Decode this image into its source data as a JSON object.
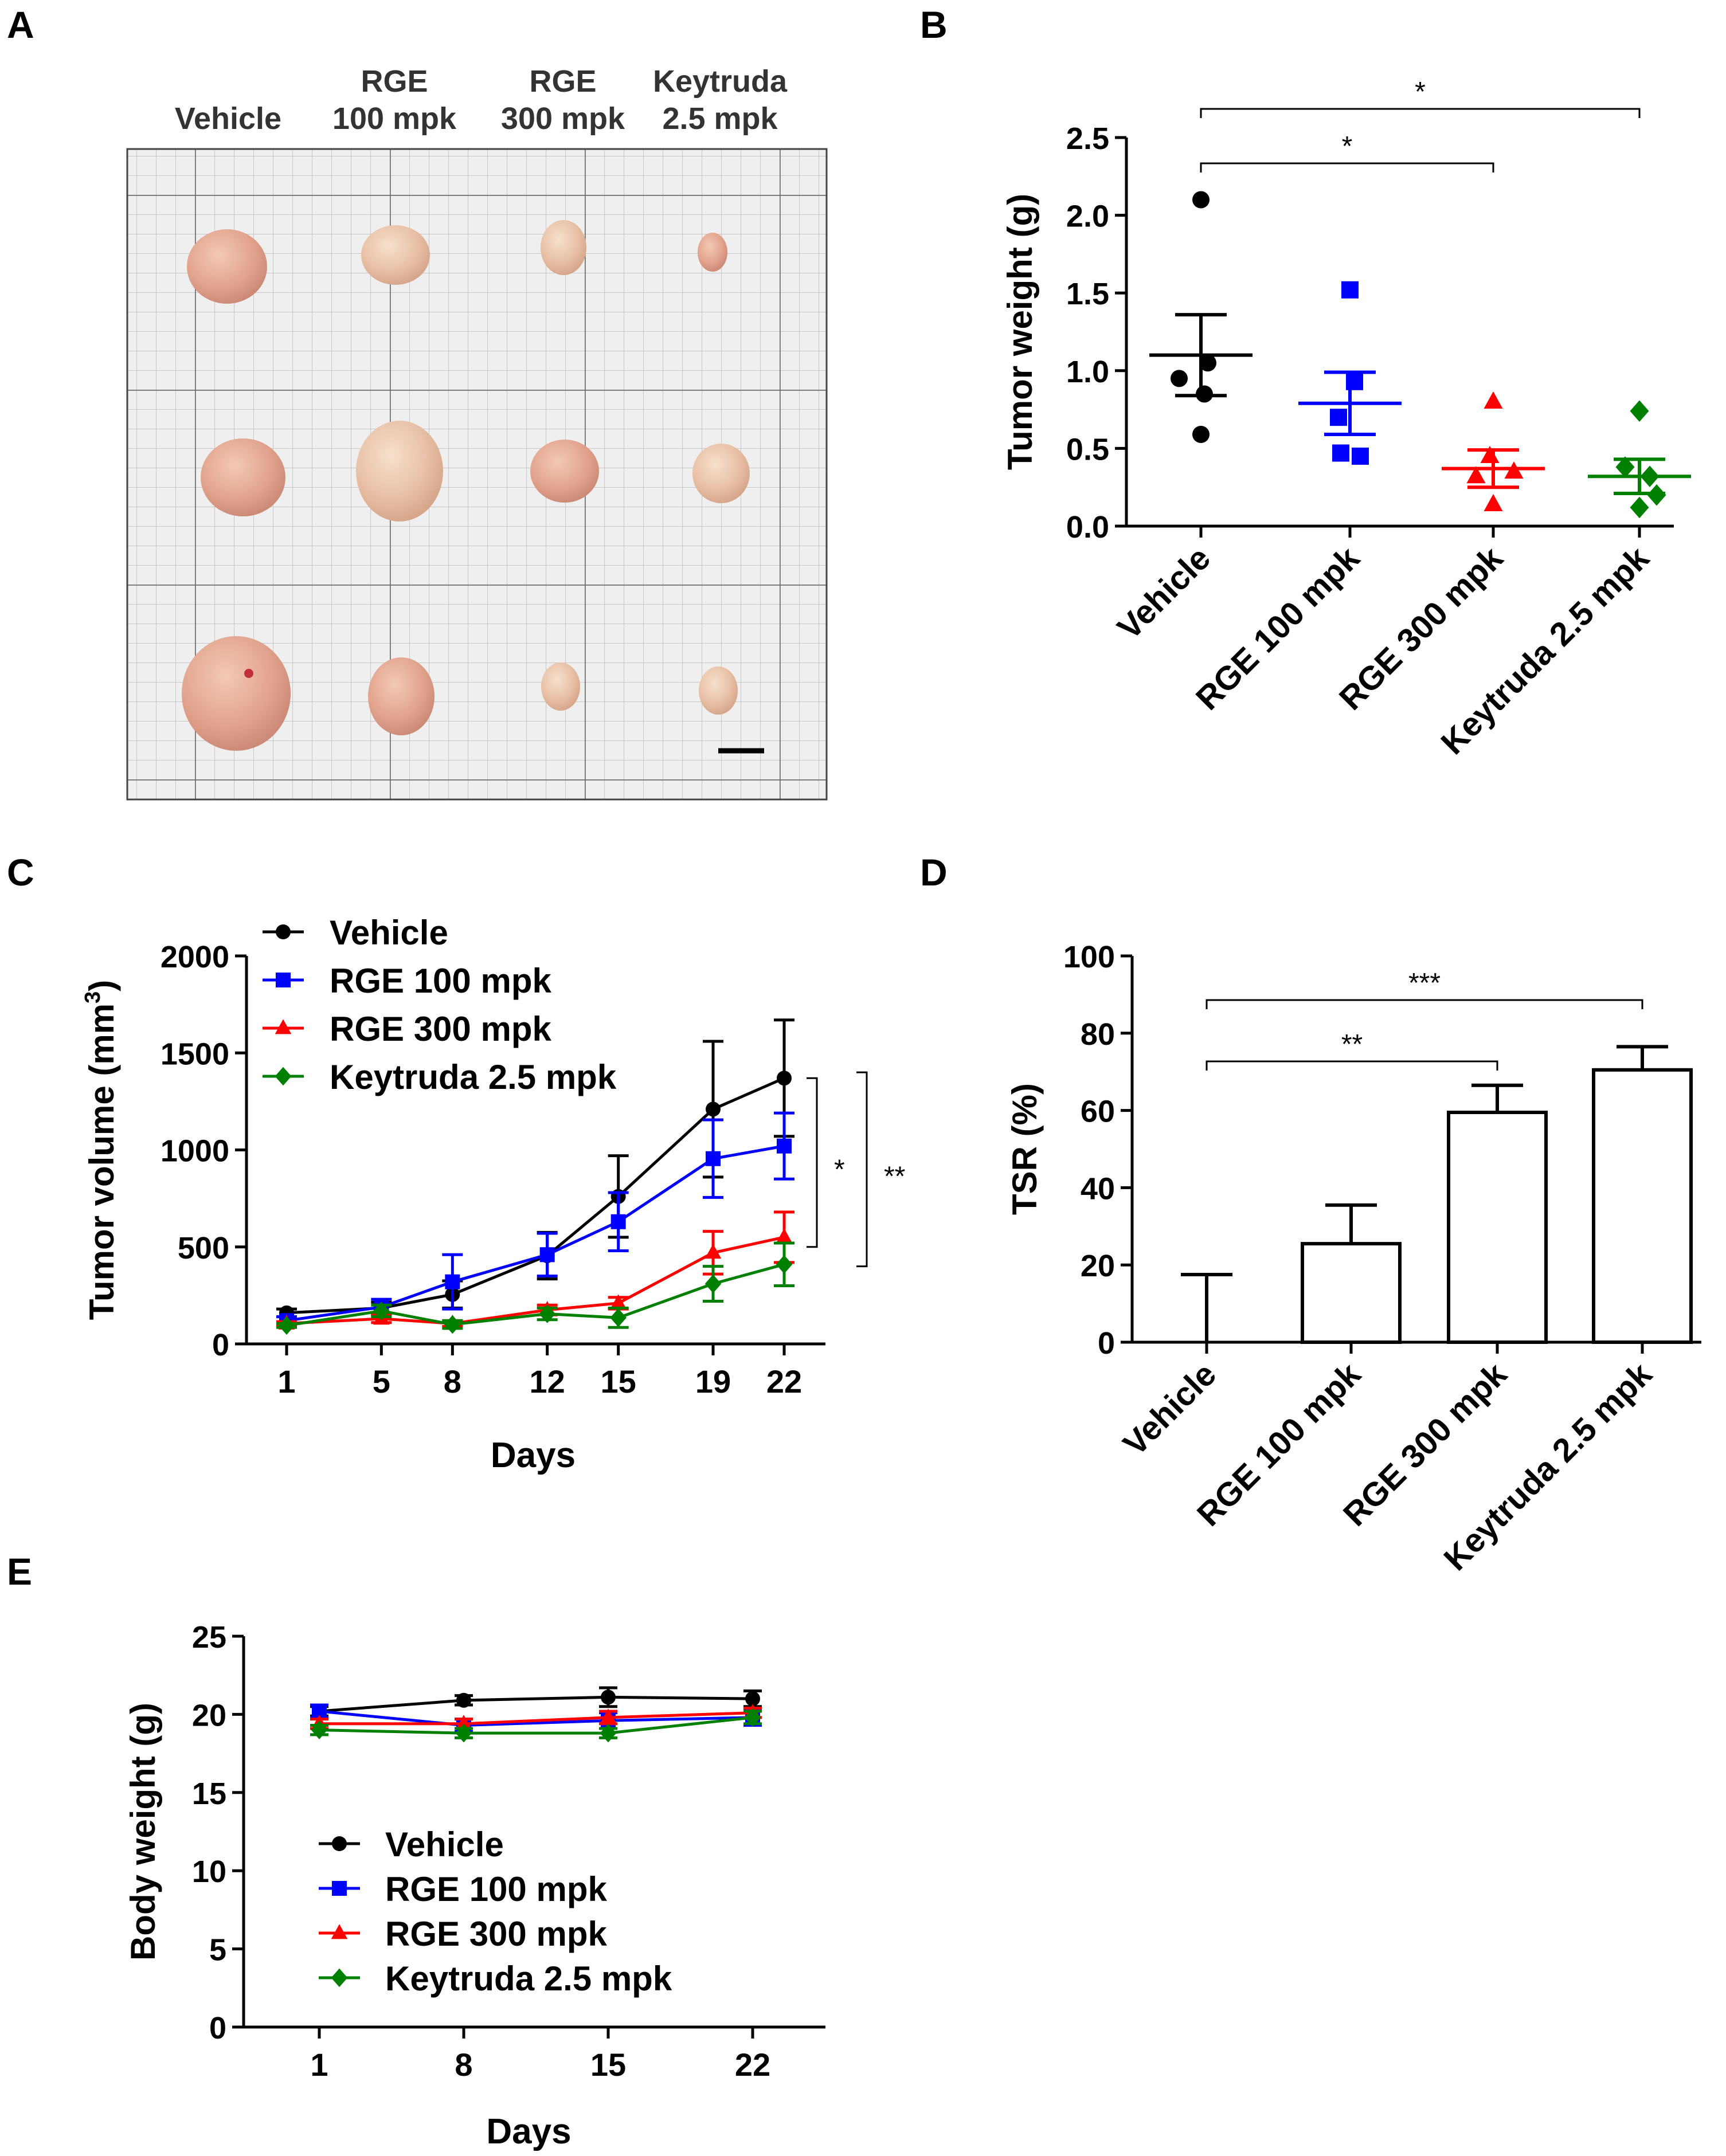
{
  "panels": {
    "A": {
      "letter": "A",
      "groups": [
        [
          "Vehicle"
        ],
        [
          "RGE",
          "100 mpk"
        ],
        [
          "RGE",
          "300 mpk"
        ],
        [
          "Keytruda",
          "2.5 mpk"
        ]
      ]
    },
    "B": {
      "letter": "B"
    },
    "C": {
      "letter": "C"
    },
    "D": {
      "letter": "D"
    },
    "E": {
      "letter": "E"
    }
  },
  "colors": {
    "Vehicle": "#000000",
    "RGE 100 mpk": "#0000ff",
    "RGE 300 mpk": "#ff0000",
    "Keytruda 2.5 mpk": "#008000"
  },
  "chart_data": [
    {
      "panel": "B",
      "type": "scatter",
      "title": "",
      "xlabel": "",
      "ylabel": "Tumor weight (g)",
      "ylim": [
        0,
        2.5
      ],
      "yticks": [
        "0.0",
        "0.5",
        "1.0",
        "1.5",
        "2.0",
        "2.5"
      ],
      "categories": [
        "Vehicle",
        "RGE 100 mpk",
        "RGE 300 mpk",
        "Keytruda 2.5 mpk"
      ],
      "series": [
        {
          "name": "Vehicle",
          "points": [
            2.1,
            1.05,
            0.95,
            0.85,
            0.59
          ],
          "mean": 1.1,
          "sem": 0.26
        },
        {
          "name": "RGE 100 mpk",
          "points": [
            1.52,
            0.93,
            0.7,
            0.47,
            0.45
          ],
          "mean": 0.79,
          "sem": 0.2
        },
        {
          "name": "RGE 300 mpk",
          "points": [
            0.8,
            0.45,
            0.35,
            0.32,
            0.14
          ],
          "mean": 0.37,
          "sem": 0.12
        },
        {
          "name": "Keytruda 2.5 mpk",
          "points": [
            0.74,
            0.38,
            0.32,
            0.2,
            0.12
          ],
          "mean": 0.32,
          "sem": 0.11
        }
      ],
      "significance": [
        {
          "from": "Vehicle",
          "to": "RGE 300 mpk",
          "label": "*"
        },
        {
          "from": "Vehicle",
          "to": "Keytruda 2.5 mpk",
          "label": "*"
        }
      ]
    },
    {
      "panel": "C",
      "type": "line",
      "title": "",
      "xlabel": "Days",
      "ylabel": "Tumor volume (mm",
      "ylabel_sup": "3",
      "ylabel_end": ")",
      "x": [
        1,
        5,
        8,
        12,
        15,
        19,
        22
      ],
      "ylim": [
        0,
        2000
      ],
      "yticks": [
        "0",
        "500",
        "1000",
        "1500",
        "2000"
      ],
      "series": [
        {
          "name": "Vehicle",
          "values": [
            160,
            185,
            255,
            455,
            760,
            1210,
            1370
          ],
          "err": [
            20,
            30,
            70,
            120,
            210,
            350,
            300
          ]
        },
        {
          "name": "RGE 100 mpk",
          "values": [
            120,
            190,
            320,
            460,
            630,
            955,
            1020
          ],
          "err": [
            20,
            40,
            140,
            110,
            150,
            200,
            170
          ]
        },
        {
          "name": "RGE 300 mpk",
          "values": [
            105,
            130,
            105,
            175,
            210,
            470,
            550
          ],
          "err": [
            10,
            20,
            15,
            25,
            30,
            110,
            130
          ]
        },
        {
          "name": "Keytruda 2.5 mpk",
          "values": [
            95,
            170,
            100,
            155,
            135,
            310,
            410
          ],
          "err": [
            10,
            30,
            20,
            30,
            50,
            90,
            110
          ]
        }
      ],
      "significance": [
        {
          "label": "*",
          "span": [
            500,
            1370
          ]
        },
        {
          "label": "**",
          "span": [
            400,
            1400
          ]
        }
      ]
    },
    {
      "panel": "D",
      "type": "bar",
      "title": "",
      "xlabel": "",
      "ylabel": "TSR (%)",
      "ylim": [
        0,
        100
      ],
      "yticks": [
        "0",
        "20",
        "40",
        "60",
        "80",
        "100"
      ],
      "categories": [
        "Vehicle",
        "RGE 100 mpk",
        "RGE 300 mpk",
        "Keytruda 2.5 mpk"
      ],
      "values": [
        0,
        25.5,
        59.5,
        70.5
      ],
      "err": [
        17.5,
        10,
        7,
        6
      ],
      "significance": [
        {
          "from": "Vehicle",
          "to": "RGE 300 mpk",
          "label": "**"
        },
        {
          "from": "Vehicle",
          "to": "Keytruda 2.5 mpk",
          "label": "***"
        }
      ]
    },
    {
      "panel": "E",
      "type": "line",
      "title": "",
      "xlabel": "Days",
      "ylabel": "Body weight (g)",
      "x": [
        1,
        8,
        15,
        22
      ],
      "ylim": [
        0,
        25
      ],
      "yticks": [
        "0",
        "5",
        "10",
        "15",
        "20",
        "25"
      ],
      "series": [
        {
          "name": "Vehicle",
          "values": [
            20.2,
            20.9,
            21.1,
            21.0
          ],
          "err": [
            0.3,
            0.3,
            0.6,
            0.5
          ]
        },
        {
          "name": "RGE 100 mpk",
          "values": [
            20.2,
            19.3,
            19.6,
            19.8
          ],
          "err": [
            0.4,
            0.4,
            0.5,
            0.5
          ]
        },
        {
          "name": "RGE 300 mpk",
          "values": [
            19.4,
            19.4,
            19.8,
            20.1
          ],
          "err": [
            0.3,
            0.3,
            0.4,
            0.3
          ]
        },
        {
          "name": "Keytruda 2.5 mpk",
          "values": [
            19.0,
            18.8,
            18.8,
            19.8
          ],
          "err": [
            0.3,
            0.3,
            0.3,
            0.4
          ]
        }
      ]
    }
  ]
}
